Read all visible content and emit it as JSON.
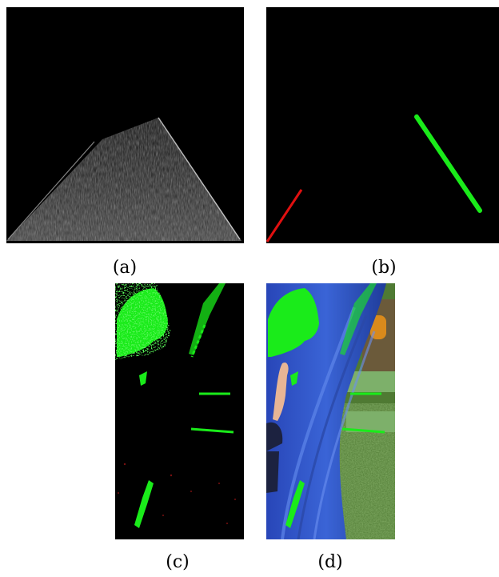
{
  "figure": {
    "panels": [
      {
        "id": "a",
        "label": "(a)"
      },
      {
        "id": "b",
        "label": "(b)"
      },
      {
        "id": "c",
        "label": "(c)"
      },
      {
        "id": "d",
        "label": "(d)"
      }
    ]
  },
  "colors": {
    "highlight": "#1aeb1a",
    "secondary": "#e01010",
    "slide_blue": "#2f56c8",
    "grass": "#5d8a3a"
  }
}
